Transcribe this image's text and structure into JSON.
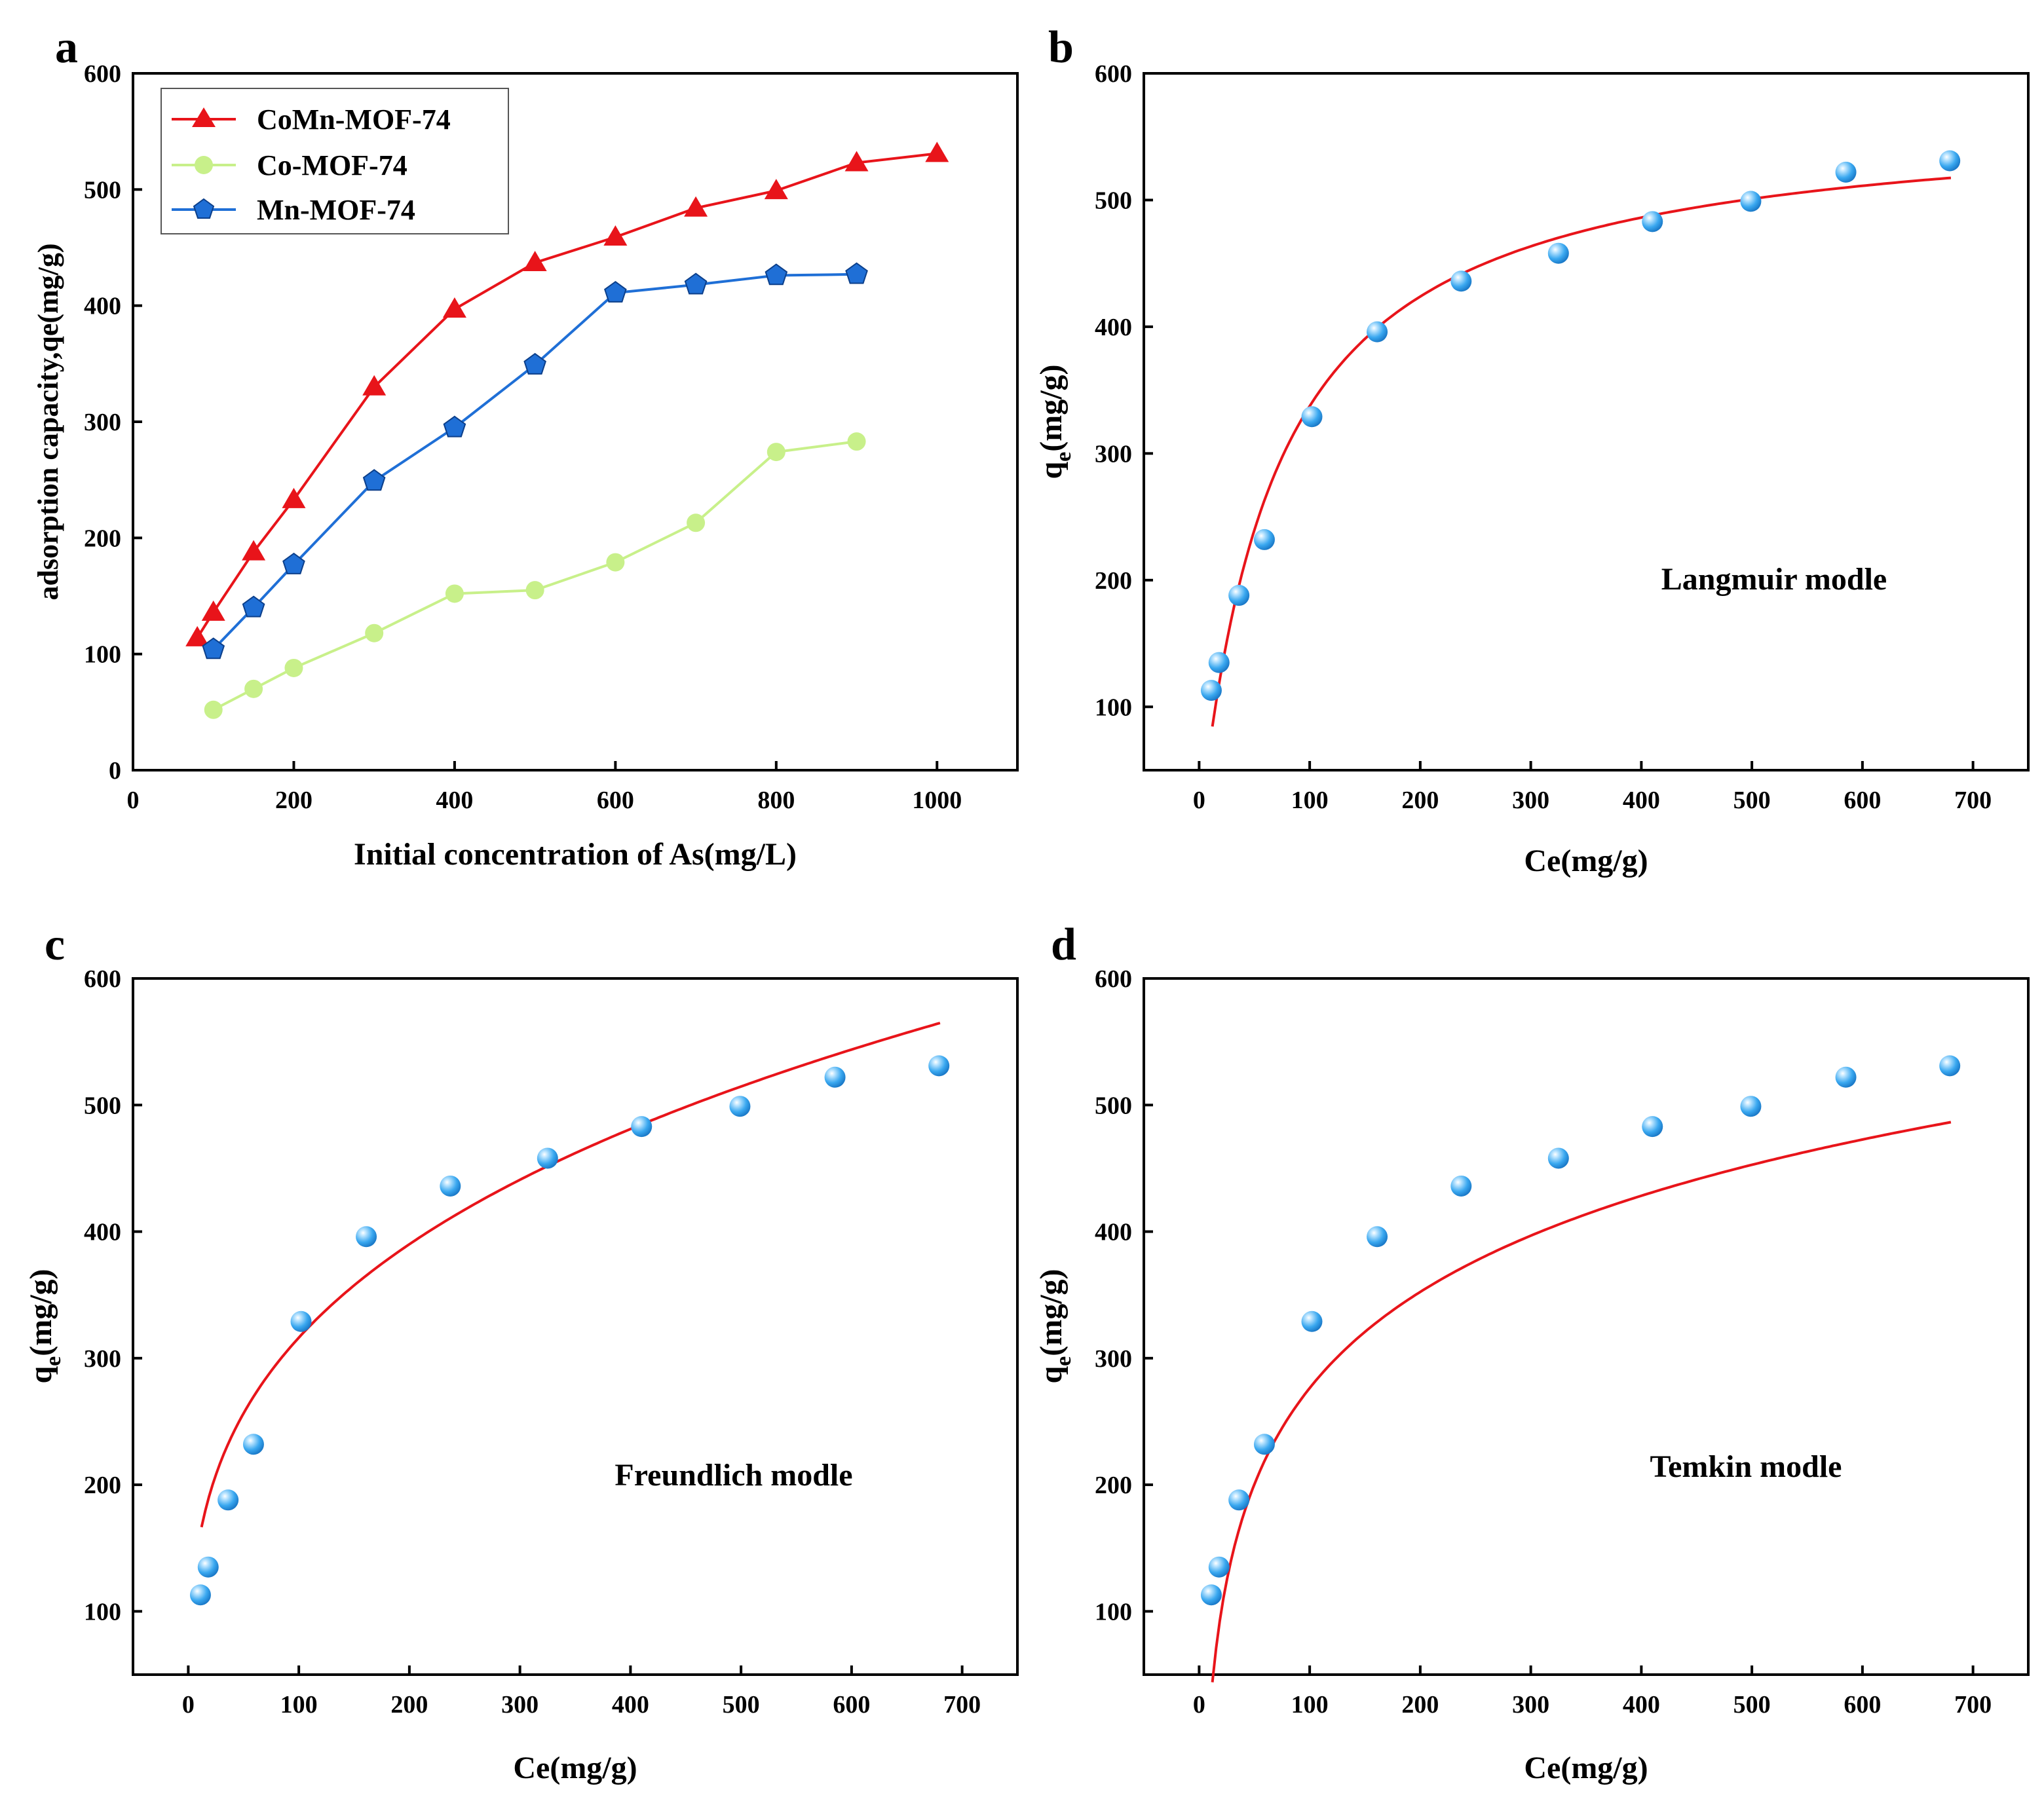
{
  "colors": {
    "comn": "#e8141a",
    "co": "#c8f08a",
    "mn": "#1f6fd6",
    "fit": "#e8141a",
    "bead": "#3aa8f0"
  },
  "chart_data": [
    {
      "id": "a",
      "type": "line",
      "panel_label": "a",
      "xlabel": "Initial concentration of As(mg/L)",
      "ylabel": "adsorption capacity,qe(mg/g)",
      "xlim": [
        0,
        1100
      ],
      "ylim": [
        0,
        600
      ],
      "xticks": [
        0,
        200,
        400,
        600,
        800,
        1000
      ],
      "yticks": [
        0,
        100,
        200,
        300,
        400,
        500,
        600
      ],
      "legend_position": "top-left",
      "series": [
        {
          "name": "CoMn-MOF-74",
          "marker": "triangle",
          "color_key": "comn",
          "x": [
            80,
            100,
            150,
            200,
            300,
            400,
            500,
            600,
            700,
            800,
            900,
            1000
          ],
          "y": [
            114,
            136,
            188,
            233,
            330,
            397,
            437,
            459,
            484,
            499,
            523,
            531
          ]
        },
        {
          "name": "Co-MOF-74",
          "marker": "circle",
          "color_key": "co",
          "x": [
            100,
            150,
            200,
            300,
            400,
            500,
            600,
            700,
            800,
            900
          ],
          "y": [
            52,
            70,
            88,
            118,
            152,
            155,
            179,
            213,
            274,
            283
          ]
        },
        {
          "name": "Mn-MOF-74",
          "marker": "pentagon",
          "color_key": "mn",
          "x": [
            100,
            150,
            200,
            300,
            400,
            500,
            600,
            700,
            800,
            900
          ],
          "y": [
            104,
            140,
            177,
            249,
            295,
            349,
            411,
            418,
            426,
            427
          ]
        }
      ]
    },
    {
      "id": "b",
      "type": "scatter",
      "panel_label": "b",
      "annotation": "Langmuir modle",
      "xlabel": "Ce(mg/g)",
      "ylabel_main": "q",
      "ylabel_sub": "e",
      "ylabel_rest": "(mg/g)",
      "xlim": [
        -50,
        750
      ],
      "ylim": [
        50,
        600
      ],
      "xticks": [
        0,
        100,
        200,
        300,
        400,
        500,
        600,
        700
      ],
      "yticks": [
        100,
        200,
        300,
        400,
        500,
        600
      ],
      "points": {
        "x": [
          11,
          18,
          36,
          59,
          102,
          161,
          237,
          325,
          410,
          499,
          585,
          679
        ],
        "y": [
          113,
          135,
          188,
          232,
          329,
          396,
          436,
          458,
          483,
          499,
          522,
          531
        ]
      },
      "fit": {
        "model": "langmuir",
        "qm": 570,
        "KL": 0.0145,
        "x_range": [
          12,
          680
        ]
      }
    },
    {
      "id": "c",
      "type": "scatter",
      "panel_label": "c",
      "annotation": "Freundlich modle",
      "xlabel": "Ce(mg/g)",
      "ylabel_main": "q",
      "ylabel_sub": "e",
      "ylabel_rest": "(mg/g)",
      "xlim": [
        -50,
        750
      ],
      "ylim": [
        50,
        600
      ],
      "xticks": [
        0,
        100,
        200,
        300,
        400,
        500,
        600,
        700
      ],
      "yticks": [
        100,
        200,
        300,
        400,
        500,
        600
      ],
      "points": {
        "x": [
          11,
          18,
          36,
          59,
          102,
          161,
          237,
          325,
          410,
          499,
          585,
          679
        ],
        "y": [
          113,
          135,
          188,
          232,
          329,
          396,
          436,
          458,
          483,
          499,
          522,
          531
        ]
      },
      "fit": {
        "model": "freundlich",
        "KF": 78.5,
        "n": 3.305,
        "x_range": [
          12,
          680
        ]
      }
    },
    {
      "id": "d",
      "type": "scatter",
      "panel_label": "d",
      "annotation": "Temkin modle",
      "xlabel": "Ce(mg/g)",
      "ylabel_main": "q",
      "ylabel_sub": "e",
      "ylabel_rest": "(mg/g)",
      "xlim": [
        -50,
        750
      ],
      "ylim": [
        50,
        600
      ],
      "xticks": [
        0,
        100,
        200,
        300,
        400,
        500,
        600,
        700
      ],
      "yticks": [
        100,
        200,
        300,
        400,
        500,
        600
      ],
      "points": {
        "x": [
          11,
          18,
          36,
          59,
          102,
          161,
          237,
          325,
          410,
          499,
          585,
          679
        ],
        "y": [
          113,
          135,
          188,
          232,
          329,
          396,
          436,
          458,
          483,
          499,
          522,
          531
        ]
      },
      "fit": {
        "model": "temkin",
        "B": 109.6,
        "KT": 0.1245,
        "x_range": [
          12,
          680
        ]
      }
    }
  ]
}
